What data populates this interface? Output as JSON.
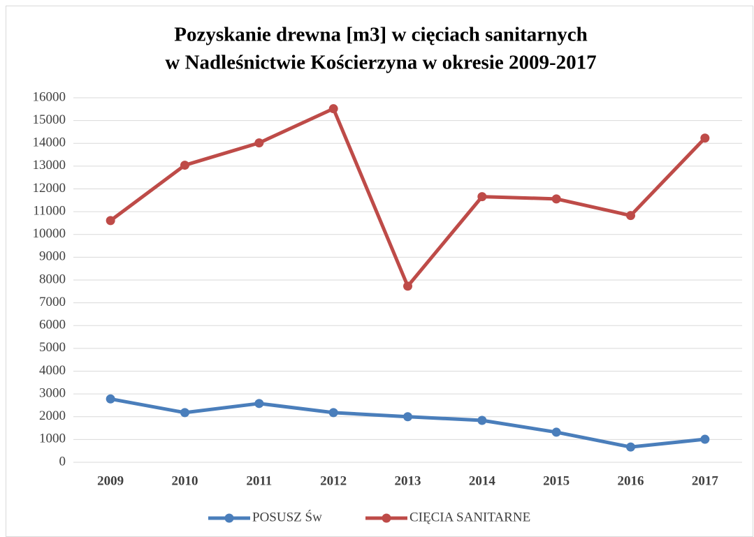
{
  "chart_data": {
    "type": "line",
    "title": [
      "Pozyskanie drewna  [m3] w cięciach sanitarnych",
      "w Nadleśnictwie Kościerzyna w okresie 2009-2017"
    ],
    "categories": [
      "2009",
      "2010",
      "2011",
      "2012",
      "2013",
      "2014",
      "2015",
      "2016",
      "2017"
    ],
    "series": [
      {
        "name": "POSUSZ Św",
        "color": "#4a7ebb",
        "values": [
          2780,
          2180,
          2580,
          2180,
          2000,
          1840,
          1320,
          670,
          1010
        ]
      },
      {
        "name": "CIĘCIA SANITARNE",
        "color": "#be4b48",
        "values": [
          10610,
          13040,
          14020,
          15520,
          7730,
          11660,
          11560,
          10830,
          14230
        ]
      }
    ],
    "ylim": [
      0,
      16000
    ],
    "yticks": [
      0,
      1000,
      2000,
      3000,
      4000,
      5000,
      6000,
      7000,
      8000,
      9000,
      10000,
      11000,
      12000,
      13000,
      14000,
      15000,
      16000
    ],
    "grid": true,
    "legend": "bottom"
  }
}
